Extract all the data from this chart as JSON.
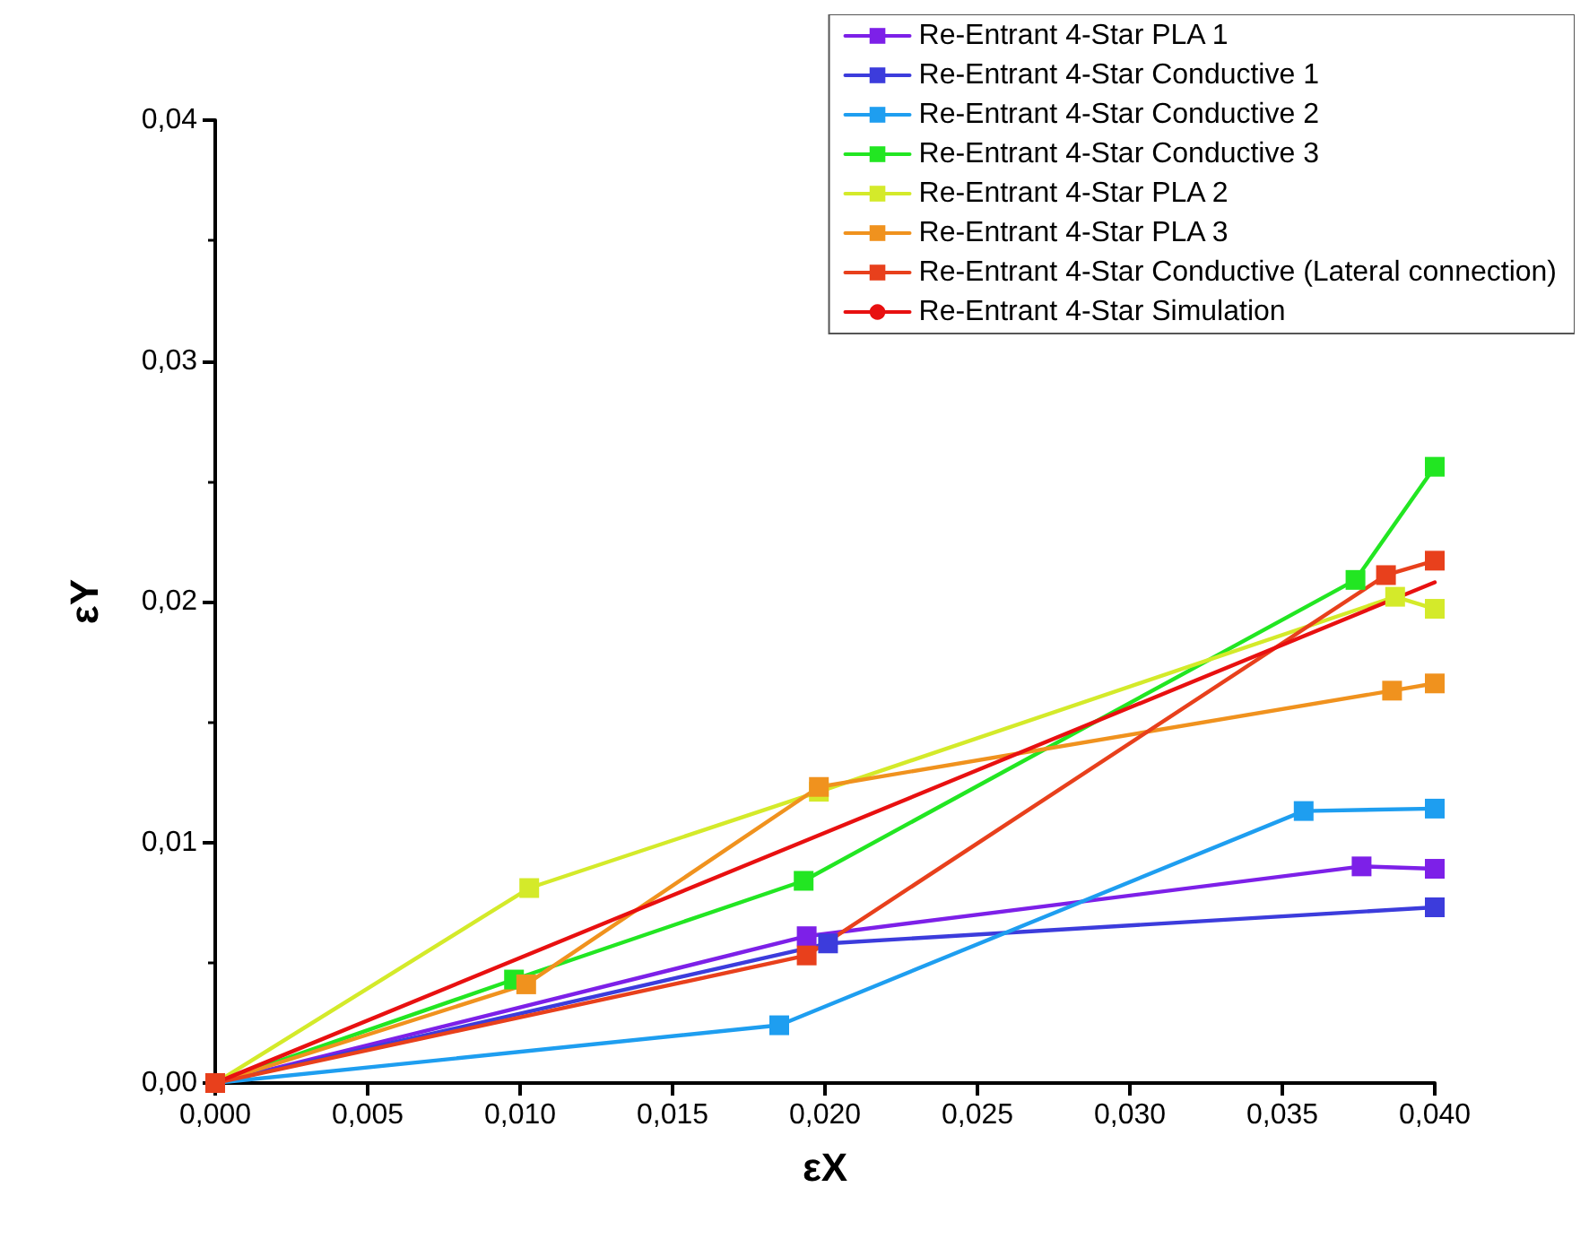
{
  "chart_data": {
    "type": "line",
    "xlabel": "εX",
    "ylabel": "εY",
    "marker": "square",
    "line_style": "solid",
    "grid": false,
    "legend": "top right",
    "xlim": [
      0,
      0.04
    ],
    "ylim": [
      0,
      0.04
    ],
    "xticks": [
      {
        "value": 0,
        "label": "0,000"
      },
      {
        "value": 0.005,
        "label": "0,005"
      },
      {
        "value": 0.01,
        "label": "0,010"
      },
      {
        "value": 0.015,
        "label": "0,015"
      },
      {
        "value": 0.02,
        "label": "0,020"
      },
      {
        "value": 0.025,
        "label": "0,025"
      },
      {
        "value": 0.03,
        "label": "0,030"
      },
      {
        "value": 0.035,
        "label": "0,035"
      },
      {
        "value": 0.04,
        "label": "0,040"
      }
    ],
    "yticks": [
      {
        "value": 0,
        "label": "0,00"
      },
      {
        "value": 0.01,
        "label": "0,01"
      },
      {
        "value": 0.02,
        "label": "0,02"
      },
      {
        "value": 0.03,
        "label": "0,03"
      },
      {
        "value": 0.04,
        "label": "0,04"
      }
    ],
    "series": [
      {
        "name": "Re-Entrant 4-Star PLA 1",
        "color": "#7d20e8",
        "x": [
          0,
          0.0194,
          0.0376,
          0.04
        ],
        "values": [
          0,
          0.0061,
          0.009,
          0.0089
        ]
      },
      {
        "name": "Re-Entrant 4-Star Conductive 1",
        "color": "#3c3cdc",
        "x": [
          0,
          0.0201,
          0.04
        ],
        "values": [
          0,
          0.0058,
          0.0073
        ]
      },
      {
        "name": "Re-Entrant 4-Star Conductive 2",
        "color": "#1e9ef0",
        "x": [
          0,
          0.0185,
          0.0357,
          0.04
        ],
        "values": [
          0,
          0.0024,
          0.0113,
          0.0114
        ]
      },
      {
        "name": "Re-Entrant 4-Star Conductive 3",
        "color": "#22e622",
        "x": [
          0,
          0.0098,
          0.0193,
          0.0374,
          0.04
        ],
        "values": [
          0,
          0.0043,
          0.0084,
          0.0209,
          0.0256
        ]
      },
      {
        "name": "Re-Entrant 4-Star PLA 2",
        "color": "#d4ea2a",
        "x": [
          0,
          0.0103,
          0.0198,
          0.0387,
          0.04
        ],
        "values": [
          0,
          0.0081,
          0.0121,
          0.0202,
          0.0197
        ]
      },
      {
        "name": "Re-Entrant 4-Star PLA 3",
        "color": "#f0921e",
        "x": [
          0,
          0.0102,
          0.0198,
          0.0386,
          0.04
        ],
        "values": [
          0,
          0.0041,
          0.0123,
          0.0163,
          0.0166
        ]
      },
      {
        "name": "Re-Entrant 4-Star Conductive (Lateral connection)",
        "color": "#e8401c",
        "x": [
          0,
          0.0194,
          0.0384,
          0.04
        ],
        "values": [
          0,
          0.0053,
          0.0211,
          0.0217
        ]
      },
      {
        "name": "Re-Entrant 4-Star Simulation",
        "color": "#e81010",
        "marker": "none",
        "x": [
          0,
          0.04
        ],
        "values": [
          0,
          0.0208
        ]
      }
    ]
  }
}
